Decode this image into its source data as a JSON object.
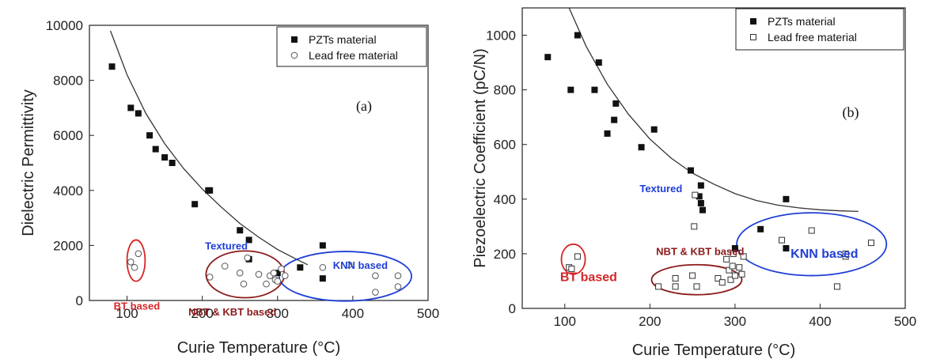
{
  "chart_data": [
    {
      "type": "scatter",
      "panel_label": "(a)",
      "xlabel": "Curie Temperature (°C)",
      "ylabel": "Dielectric Permittivity",
      "xlim": [
        50,
        500
      ],
      "ylim": [
        0,
        10000
      ],
      "xticks": [
        100,
        200,
        300,
        400,
        500
      ],
      "yticks": [
        0,
        2000,
        4000,
        6000,
        8000,
        10000
      ],
      "grid": false,
      "legend_position": "top-right",
      "series": [
        {
          "name": "PZTs material",
          "marker": "filled-square",
          "points": [
            [
              80,
              8500
            ],
            [
              105,
              7000
            ],
            [
              115,
              6800
            ],
            [
              130,
              6000
            ],
            [
              138,
              5500
            ],
            [
              150,
              5200
            ],
            [
              160,
              5000
            ],
            [
              190,
              3500
            ],
            [
              208,
              4000
            ],
            [
              210,
              4000
            ],
            [
              250,
              2550
            ],
            [
              262,
              2200
            ],
            [
              262,
              1500
            ],
            [
              300,
              1000
            ],
            [
              330,
              1200
            ],
            [
              360,
              2000
            ],
            [
              360,
              800
            ]
          ]
        },
        {
          "name": "Lead free material",
          "marker": "open-circle",
          "points": [
            [
              105,
              1400
            ],
            [
              110,
              1200
            ],
            [
              115,
              1700
            ],
            [
              210,
              850
            ],
            [
              230,
              1250
            ],
            [
              250,
              1000
            ],
            [
              255,
              600
            ],
            [
              260,
              1550
            ],
            [
              275,
              950
            ],
            [
              285,
              600
            ],
            [
              290,
              900
            ],
            [
              295,
              1000
            ],
            [
              297,
              750
            ],
            [
              300,
              700
            ],
            [
              305,
              1150
            ],
            [
              310,
              900
            ],
            [
              360,
              1200
            ],
            [
              395,
              1300
            ],
            [
              430,
              900
            ],
            [
              430,
              300
            ],
            [
              460,
              500
            ],
            [
              460,
              900
            ]
          ]
        }
      ],
      "trend_curve": [
        [
          78,
          9800
        ],
        [
          100,
          8200
        ],
        [
          125,
          6800
        ],
        [
          150,
          5700
        ],
        [
          175,
          4800
        ],
        [
          200,
          4050
        ],
        [
          225,
          3400
        ],
        [
          250,
          2800
        ],
        [
          275,
          2300
        ],
        [
          300,
          1850
        ],
        [
          325,
          1500
        ],
        [
          340,
          1300
        ]
      ],
      "annotations": [
        {
          "text": "BT based",
          "color": "#d62728",
          "x": 113,
          "y": -330,
          "size": 13
        },
        {
          "text": "Textured",
          "color": "#1f3fd6",
          "x": 232,
          "y": 1850,
          "size": 13
        },
        {
          "text": "NBT & KBT based",
          "color": "#8b1a1a",
          "x": 240,
          "y": -550,
          "size": 13
        },
        {
          "text": "KNN based",
          "color": "#1f3fd6",
          "x": 410,
          "y": 1150,
          "size": 13
        }
      ],
      "ellipses": [
        {
          "color": "#d62728",
          "cx": 112,
          "cy": 1450,
          "rx": 12,
          "ry": 750
        },
        {
          "color": "#8b1a1a",
          "cx": 257,
          "cy": 950,
          "rx": 52,
          "ry": 850
        },
        {
          "color": "#1f3fd6",
          "cx": 390,
          "cy": 880,
          "rx": 88,
          "ry": 900
        }
      ]
    },
    {
      "type": "scatter",
      "panel_label": "(b)",
      "xlabel": "Curie Temperature (°C)",
      "ylabel": "Piezoelectric Coefficient (pC/N)",
      "xlim": [
        50,
        500
      ],
      "ylim": [
        0,
        1100
      ],
      "xticks": [
        100,
        200,
        300,
        400,
        500
      ],
      "yticks": [
        0,
        200,
        400,
        600,
        800,
        1000
      ],
      "grid": false,
      "legend_position": "top-right",
      "series": [
        {
          "name": "PZTs material",
          "marker": "filled-square",
          "points": [
            [
              80,
              920
            ],
            [
              107,
              800
            ],
            [
              115,
              1000
            ],
            [
              135,
              800
            ],
            [
              140,
              900
            ],
            [
              150,
              640
            ],
            [
              158,
              690
            ],
            [
              160,
              750
            ],
            [
              190,
              590
            ],
            [
              205,
              655
            ],
            [
              248,
              505
            ],
            [
              258,
              410
            ],
            [
              260,
              450
            ],
            [
              260,
              385
            ],
            [
              262,
              360
            ],
            [
              300,
              220
            ],
            [
              330,
              290
            ],
            [
              360,
              400
            ],
            [
              360,
              220
            ]
          ]
        },
        {
          "name": "Lead free material",
          "marker": "open-square",
          "points": [
            [
              105,
              150
            ],
            [
              108,
              145
            ],
            [
              115,
              190
            ],
            [
              210,
              80
            ],
            [
              230,
              80
            ],
            [
              230,
              110
            ],
            [
              250,
              120
            ],
            [
              252,
              300
            ],
            [
              253,
              415
            ],
            [
              255,
              80
            ],
            [
              280,
              110
            ],
            [
              285,
              95
            ],
            [
              290,
              180
            ],
            [
              293,
              140
            ],
            [
              295,
              105
            ],
            [
              297,
              155
            ],
            [
              298,
              200
            ],
            [
              300,
              120
            ],
            [
              305,
              150
            ],
            [
              308,
              125
            ],
            [
              310,
              190
            ],
            [
              355,
              250
            ],
            [
              390,
              285
            ],
            [
              420,
              80
            ],
            [
              430,
              190
            ],
            [
              430,
              200
            ],
            [
              460,
              240
            ]
          ]
        }
      ],
      "trend_curve": [
        [
          105,
          1100
        ],
        [
          125,
          960
        ],
        [
          150,
          820
        ],
        [
          175,
          710
        ],
        [
          200,
          620
        ],
        [
          225,
          550
        ],
        [
          250,
          495
        ],
        [
          275,
          455
        ],
        [
          300,
          420
        ],
        [
          325,
          395
        ],
        [
          350,
          378
        ],
        [
          375,
          368
        ],
        [
          400,
          361
        ],
        [
          425,
          357
        ],
        [
          445,
          355
        ]
      ],
      "annotations": [
        {
          "text": "Textured",
          "color": "#1f3fd6",
          "x": 213,
          "y": 425,
          "size": 13
        },
        {
          "text": "NBT & KBT based",
          "color": "#8b1a1a",
          "x": 259,
          "y": 195,
          "size": 13
        },
        {
          "text": "BT based",
          "color": "#d62728",
          "x": 128,
          "y": 100,
          "size": 16
        },
        {
          "text": "KNN based",
          "color": "#1f3fd6",
          "x": 405,
          "y": 185,
          "size": 16
        }
      ],
      "ellipses": [
        {
          "color": "#d62728",
          "cx": 110,
          "cy": 180,
          "rx": 14,
          "ry": 55
        },
        {
          "color": "#8b1a1a",
          "cx": 255,
          "cy": 105,
          "rx": 53,
          "ry": 55
        },
        {
          "color": "#1f3fd6",
          "cx": 390,
          "cy": 235,
          "rx": 88,
          "ry": 115
        }
      ]
    }
  ]
}
